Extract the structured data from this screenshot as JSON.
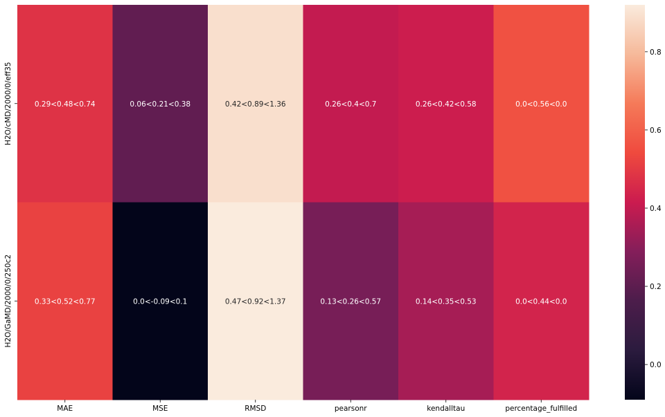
{
  "chart_data": {
    "type": "heatmap",
    "rows": [
      "H2O/cMD/2000/0/eff35",
      "H2O/GaMD/2000/0/250c2"
    ],
    "columns": [
      "MAE",
      "MSE",
      "RMSD",
      "pearsonr",
      "kendalltau",
      "percentage_fulfilled"
    ],
    "values": [
      [
        0.48,
        0.21,
        0.89,
        0.4,
        0.42,
        0.56
      ],
      [
        0.52,
        -0.09,
        0.92,
        0.26,
        0.35,
        0.44
      ]
    ],
    "annotations": [
      [
        "0.29<0.48<0.74",
        "0.06<0.21<0.38",
        "0.42<0.89<1.36",
        "0.26<0.4<0.7",
        "0.26<0.42<0.58",
        "0.0<0.56<0.0"
      ],
      [
        "0.33<0.52<0.77",
        "0.0<-0.09<0.1",
        "0.47<0.92<1.37",
        "0.13<0.26<0.57",
        "0.14<0.35<0.53",
        "0.0<0.44<0.0"
      ]
    ],
    "colorbar": {
      "colormap": "rocket",
      "range": [
        -0.09,
        0.92
      ],
      "ticks": [
        0.0,
        0.2,
        0.4,
        0.6,
        0.8
      ],
      "tick_labels": [
        "0.0",
        "0.2",
        "0.4",
        "0.6",
        "0.8"
      ]
    },
    "title": "",
    "xlabel": "",
    "ylabel": ""
  }
}
